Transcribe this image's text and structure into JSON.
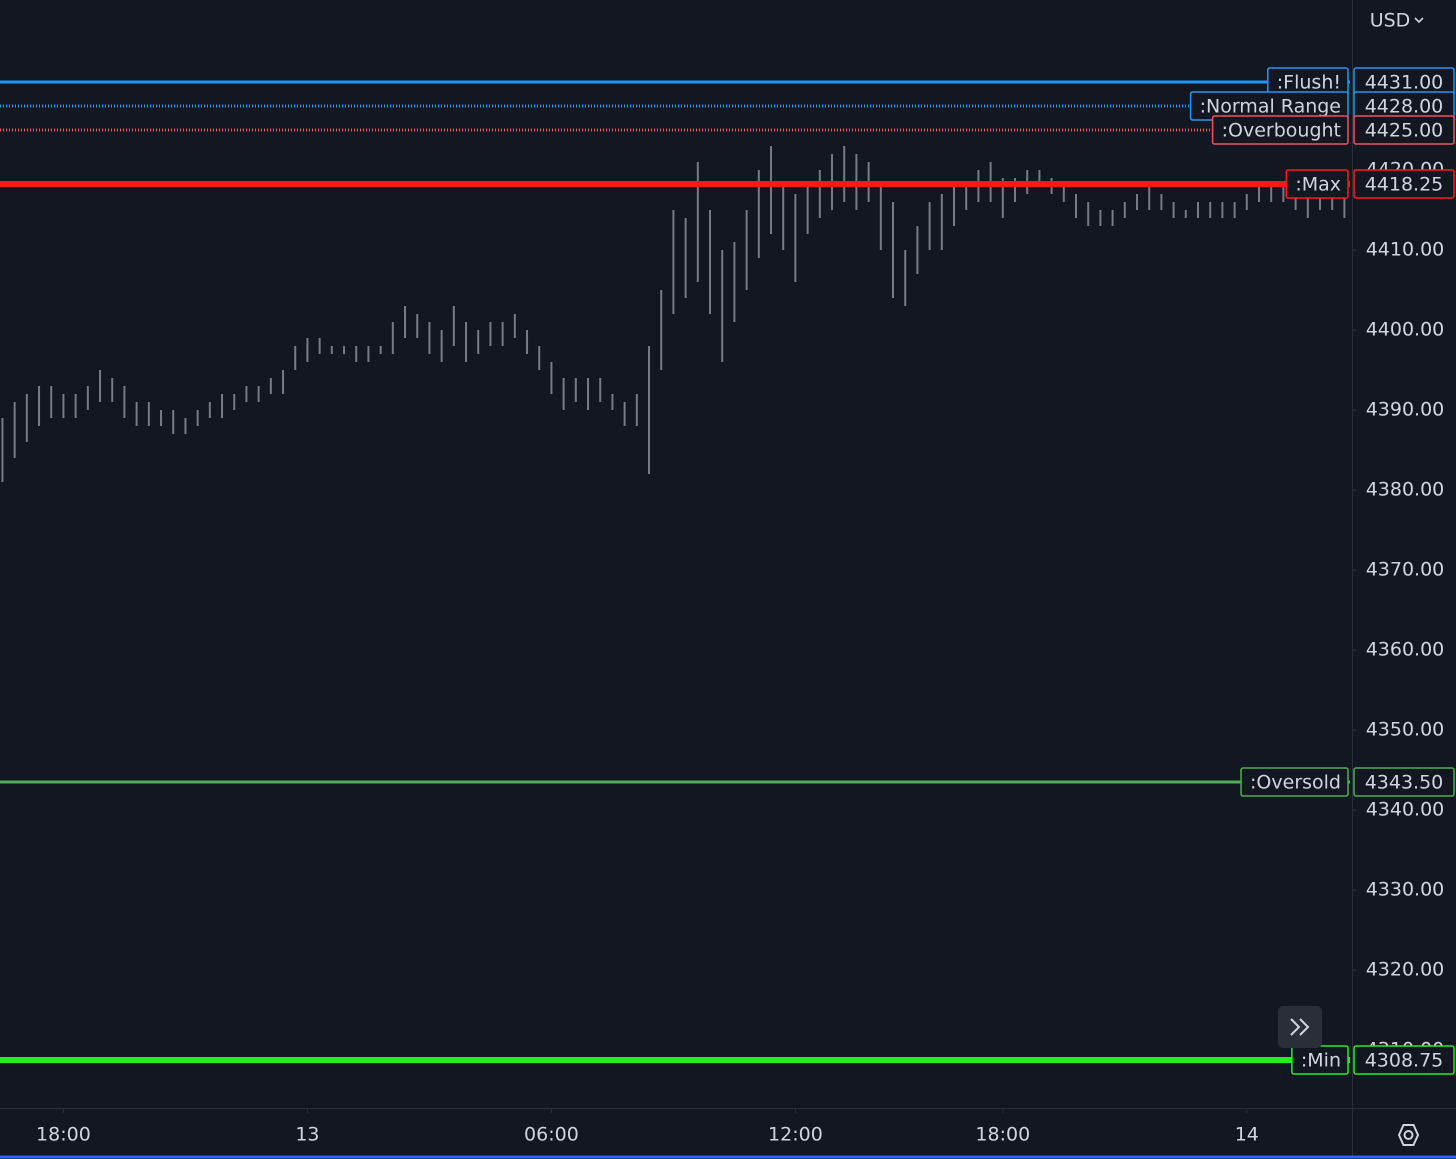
{
  "chart_data": {
    "type": "range",
    "currency": "USD",
    "bar_color": "#787b86",
    "xlim": [
      -0.2,
      110.5
    ],
    "xticks": [
      {
        "value": 5,
        "label": "18:00"
      },
      {
        "value": 25,
        "label": "13"
      },
      {
        "value": 45,
        "label": "06:00"
      },
      {
        "value": 65,
        "label": "12:00"
      },
      {
        "value": 82,
        "label": "18:00"
      },
      {
        "value": 102,
        "label": "14"
      }
    ],
    "ylim": [
      4302.75,
      4441.25
    ],
    "yticks": [
      {
        "value": 4310,
        "label": "4310.00"
      },
      {
        "value": 4320,
        "label": "4320.00"
      },
      {
        "value": 4330,
        "label": "4330.00"
      },
      {
        "value": 4340,
        "label": "4340.00"
      },
      {
        "value": 4350,
        "label": "4350.00"
      },
      {
        "value": 4360,
        "label": "4360.00"
      },
      {
        "value": 4370,
        "label": "4370.00"
      },
      {
        "value": 4380,
        "label": "4380.00"
      },
      {
        "value": 4390,
        "label": "4390.00"
      },
      {
        "value": 4400,
        "label": "4400.00"
      },
      {
        "value": 4410,
        "label": "4410.00"
      },
      {
        "value": 4420,
        "label": "4420.00"
      },
      {
        "value": 4430,
        "label": "4430.00"
      }
    ],
    "high": [
      4389,
      4391,
      4392,
      4393,
      4393,
      4392,
      4392,
      4393,
      4395,
      4394,
      4393,
      4391,
      4391,
      4390,
      4390,
      4389,
      4390,
      4391,
      4392,
      4392,
      4393,
      4393,
      4394,
      4395,
      4398,
      4399,
      4399,
      4398,
      4398,
      4398,
      4398,
      4398,
      4401,
      4403,
      4402,
      4401,
      4400,
      4403,
      4401,
      4400,
      4401,
      4401,
      4402,
      4400,
      4398,
      4396,
      4394,
      4394,
      4394,
      4394,
      4392,
      4391,
      4392,
      4398,
      4405,
      4415,
      4414,
      4421,
      4415,
      4410,
      4411,
      4415,
      4420,
      4423,
      4418,
      4417,
      4418,
      4420,
      4422,
      4423,
      4422,
      4421,
      4418,
      4416,
      4410,
      4413,
      4416,
      4417,
      4418,
      4418,
      4420,
      4421,
      4419,
      4419,
      4420,
      4420,
      4419,
      4418,
      4417,
      4416,
      4415,
      4415,
      4416,
      4417,
      4418,
      4417,
      4416,
      4415,
      4416,
      4416,
      4416,
      4416,
      4417,
      4418,
      4418,
      4418,
      4417,
      4417,
      4417,
      4417,
      4417
    ],
    "low": [
      4381,
      4384,
      4386,
      4388,
      4389,
      4389,
      4389,
      4390,
      4391,
      4391,
      4389,
      4388,
      4388,
      4388,
      4387,
      4387,
      4388,
      4389,
      4389,
      4390,
      4391,
      4391,
      4392,
      4392,
      4395,
      4396,
      4397,
      4397,
      4397,
      4396,
      4396,
      4397,
      4397,
      4399,
      4399,
      4397,
      4396,
      4398,
      4396,
      4397,
      4398,
      4398,
      4399,
      4397,
      4395,
      4392,
      4390,
      4391,
      4390,
      4391,
      4390,
      4388,
      4388,
      4382,
      4395,
      4402,
      4404,
      4406,
      4402,
      4396,
      4401,
      4405,
      4409,
      4412,
      4410,
      4406,
      4412,
      4414,
      4415,
      4416,
      4415,
      4416,
      4410,
      4404,
      4403,
      4407,
      4410,
      4410,
      4413,
      4415,
      4416,
      4416,
      4414,
      4416,
      4417,
      4418,
      4417,
      4416,
      4414,
      4413,
      4413,
      4413,
      4414,
      4415,
      4415,
      4415,
      4414,
      4414,
      4414,
      4414,
      4414,
      4414,
      4415,
      4416,
      4416,
      4416,
      4415,
      4414,
      4415,
      4415,
      4414
    ],
    "levels": [
      {
        "name": ":Flush!",
        "value": 4431,
        "value_label": "4431.00",
        "color": "#2196f3",
        "style": "solid"
      },
      {
        "name": ":Normal Range",
        "value": 4428,
        "value_label": "4428.00",
        "color": "#2196f3",
        "style": "dotted"
      },
      {
        "name": ":Overbought",
        "value": 4425,
        "value_label": "4425.00",
        "color": "#f0525a",
        "style": "dotted"
      },
      {
        "name": ":Max",
        "value": 4418.25,
        "value_label": "4418.25",
        "color": "#ff1a1a",
        "style": "thick"
      },
      {
        "name": ":Oversold",
        "value": 4343.5,
        "value_label": "4343.50",
        "color": "#4caf50",
        "style": "solid"
      },
      {
        "name": ":Min",
        "value": 4308.75,
        "value_label": "4308.75",
        "color": "#22ee22",
        "style": "thick"
      }
    ]
  }
}
